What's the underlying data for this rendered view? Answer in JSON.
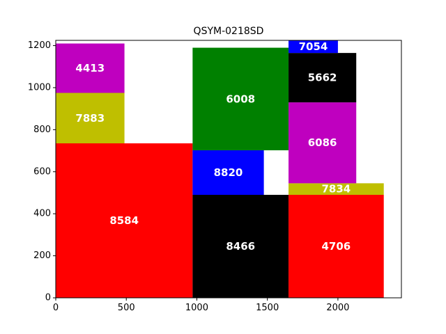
{
  "chart_data": {
    "type": "treemap",
    "title": "QSYM-0218SD",
    "xlabel": "",
    "ylabel": "",
    "xlim": [
      0,
      2450
    ],
    "ylim": [
      0,
      1225
    ],
    "xticks": [
      0,
      500,
      1000,
      1500,
      2000
    ],
    "yticks": [
      0,
      200,
      400,
      600,
      800,
      1000,
      1200
    ],
    "grid": false,
    "rectangles": [
      {
        "label": "8584",
        "x0": 0,
        "x1": 970,
        "y0": 0,
        "y1": 735,
        "color": "#ff0000"
      },
      {
        "label": "7883",
        "x0": 0,
        "x1": 487,
        "y0": 735,
        "y1": 975,
        "color": "#bfbf00"
      },
      {
        "label": "4413",
        "x0": 0,
        "x1": 487,
        "y0": 975,
        "y1": 1210,
        "color": "#bf00bf"
      },
      {
        "label": "8466",
        "x0": 970,
        "x1": 1650,
        "y0": 0,
        "y1": 490,
        "color": "#000000"
      },
      {
        "label": "8820",
        "x0": 970,
        "x1": 1475,
        "y0": 490,
        "y1": 702,
        "color": "#0000ff"
      },
      {
        "label": "6008",
        "x0": 970,
        "x1": 1650,
        "y0": 702,
        "y1": 1190,
        "color": "#008000"
      },
      {
        "label": "4706",
        "x0": 1650,
        "x1": 2325,
        "y0": 0,
        "y1": 490,
        "color": "#ff0000"
      },
      {
        "label": "7834",
        "x0": 1650,
        "x1": 2325,
        "y0": 490,
        "y1": 545,
        "color": "#bfbf00"
      },
      {
        "label": "6086",
        "x0": 1650,
        "x1": 2130,
        "y0": 545,
        "y1": 930,
        "color": "#bf00bf"
      },
      {
        "label": "5662",
        "x0": 1650,
        "x1": 2130,
        "y0": 930,
        "y1": 1165,
        "color": "#000000"
      },
      {
        "label": "7054",
        "x0": 1650,
        "x1": 2000,
        "y0": 1165,
        "y1": 1225,
        "color": "#0000ff"
      }
    ]
  }
}
